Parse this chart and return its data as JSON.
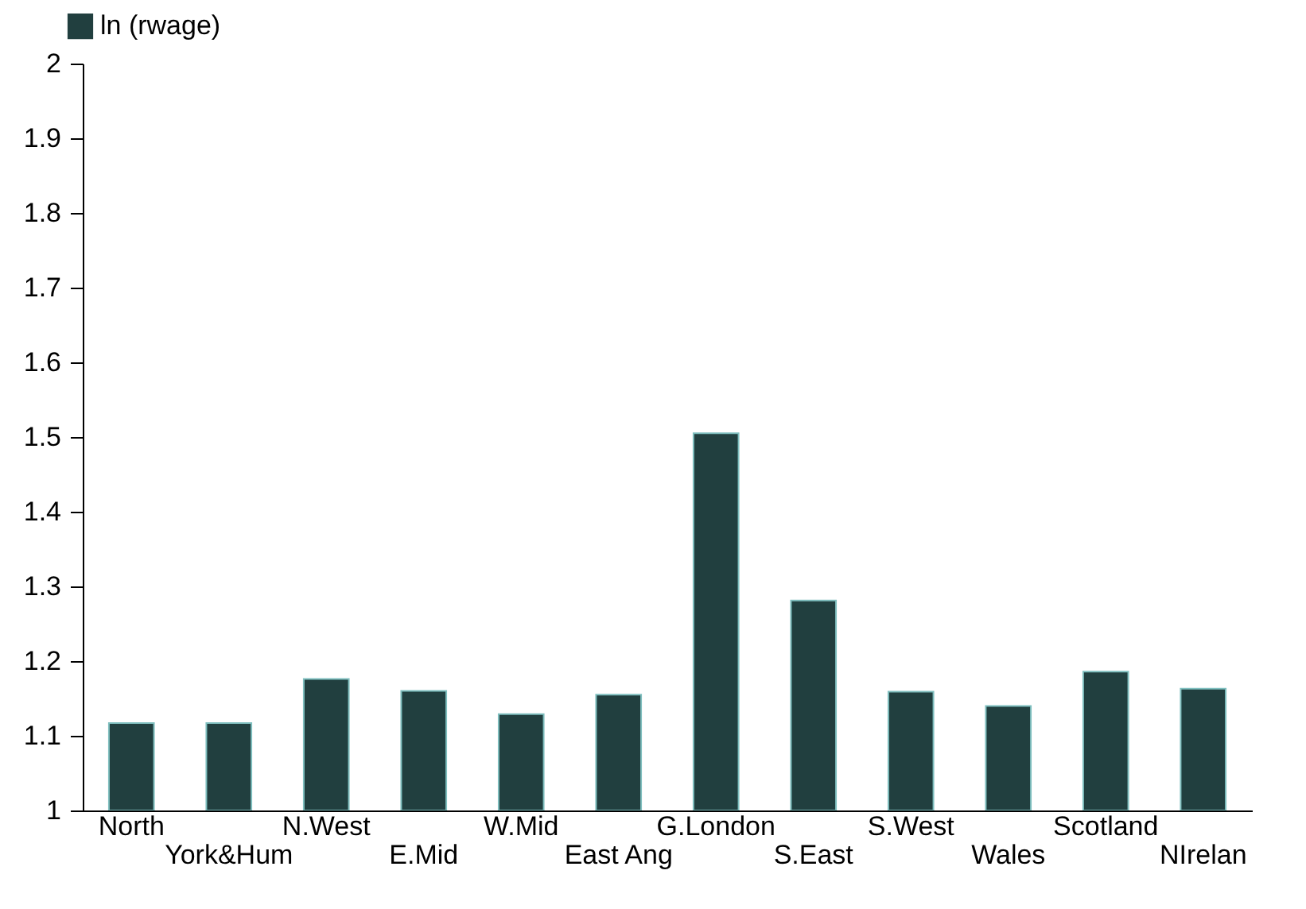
{
  "chart_data": {
    "type": "bar",
    "categories": [
      "North",
      "York&Hum",
      "N.West",
      "E.Mid",
      "W.Mid",
      "East Ang",
      "G.London",
      "S.East",
      "S.West",
      "Wales",
      "Scotland",
      "NIrelan"
    ],
    "series": [
      {
        "name": "ln (rwage)",
        "color": "#213f3f",
        "values": [
          1.117,
          1.117,
          1.176,
          1.16,
          1.129,
          1.155,
          1.505,
          1.281,
          1.159,
          1.14,
          1.186,
          1.163
        ]
      }
    ],
    "ylim": [
      1,
      2
    ],
    "yticks": [
      1,
      1.1,
      1.2,
      1.3,
      1.4,
      1.5,
      1.6,
      1.7,
      1.8,
      1.9,
      2
    ],
    "grid": false,
    "legend": "top left"
  }
}
